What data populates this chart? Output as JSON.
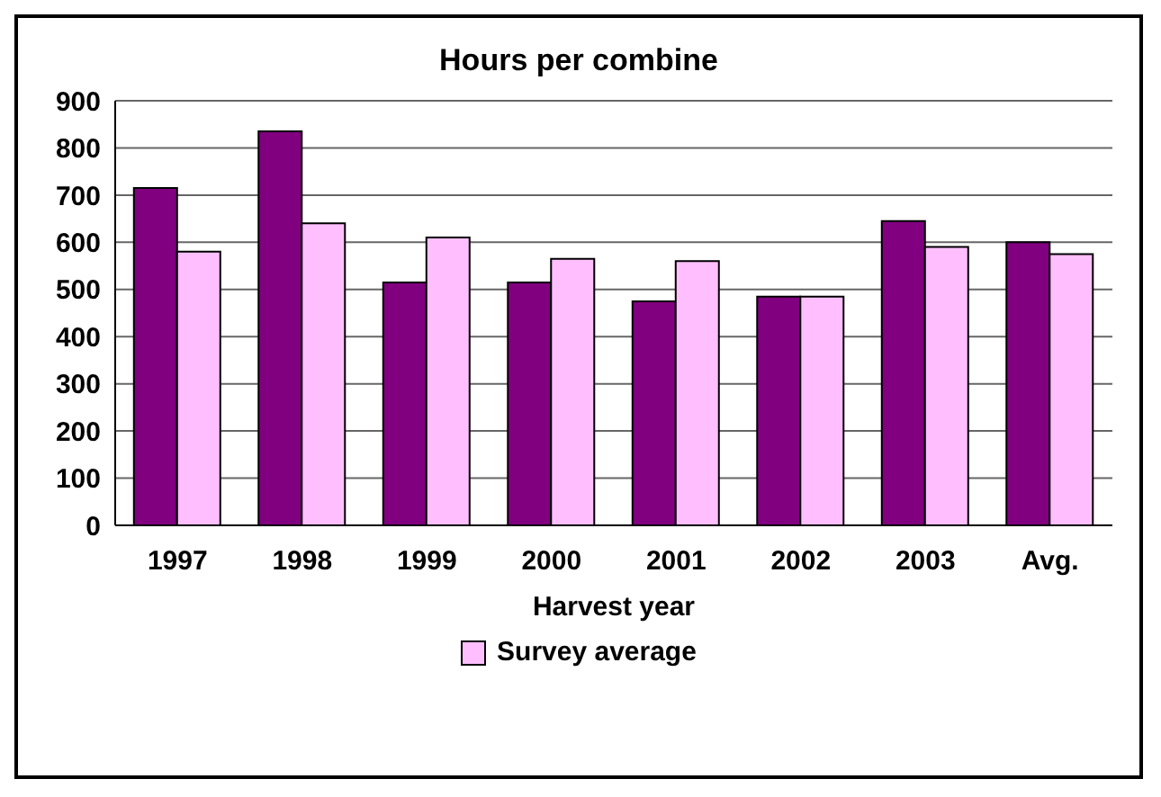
{
  "chart_data": {
    "type": "bar",
    "title": "Hours per combine",
    "xlabel": "Harvest year",
    "categories": [
      "1997",
      "1998",
      "1999",
      "2000",
      "2001",
      "2002",
      "2003",
      "Avg."
    ],
    "series": [
      {
        "color": "#800080",
        "values": [
          715,
          835,
          515,
          515,
          475,
          485,
          645,
          600
        ]
      },
      {
        "name": "Survey average",
        "color": "#ffbfff",
        "values": [
          580,
          640,
          610,
          565,
          560,
          485,
          590,
          575
        ]
      }
    ],
    "ylim": [
      0,
      900
    ],
    "yticks": [
      0,
      100,
      200,
      300,
      400,
      500,
      600,
      700,
      800,
      900
    ],
    "grid": "y",
    "legend": "bottom"
  }
}
